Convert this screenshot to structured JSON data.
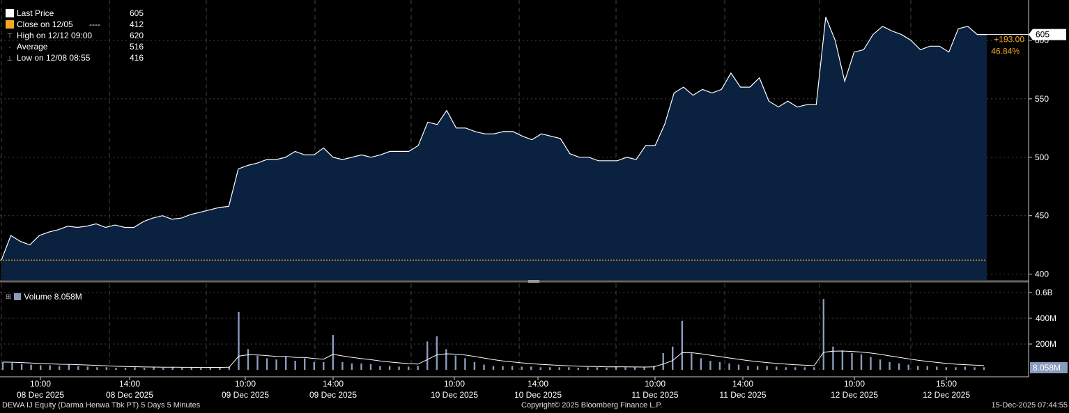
{
  "legend": {
    "last_price_label": "Last Price",
    "last_price_value": "605",
    "close_label": "Close on 12/05",
    "close_dash": "----",
    "close_value": "412",
    "high_label": "High on 12/12 09:00",
    "high_value": "620",
    "average_label": "Average",
    "average_value": "516",
    "low_label": "Low on 12/08 08:55",
    "low_value": "416",
    "volume_label": "Volume",
    "volume_value": "8.058M"
  },
  "colors": {
    "area": "#0a2140",
    "line": "#ffffff",
    "close_line": "#f5a623",
    "volume": "#8a9bbd",
    "change": "#f5a623",
    "grid": "#444444"
  },
  "footer": {
    "left": "DEWA IJ Equity (Darma Henwa Tbk PT) 5 Days 5 Minutes",
    "center": "Copyright© 2025 Bloomberg Finance L.P.",
    "right": "15-Dec-2025 07:44:55"
  },
  "chart_data": [
    {
      "type": "area",
      "series": [
        {
          "name": "Last Price",
          "values": [
            412,
            433,
            428,
            425,
            433,
            436,
            438,
            441,
            440,
            441,
            443,
            440,
            442,
            440,
            440,
            445,
            448,
            450,
            447,
            448,
            451,
            453,
            455,
            457,
            458,
            490,
            493,
            495,
            498,
            498,
            500,
            505,
            502,
            502,
            508,
            500,
            498,
            500,
            502,
            500,
            502,
            505,
            505,
            505,
            510,
            530,
            528,
            540,
            525,
            525,
            522,
            520,
            520,
            522,
            522,
            518,
            515,
            520,
            518,
            516,
            503,
            500,
            500,
            497,
            497,
            497,
            500,
            498,
            510,
            510,
            528,
            555,
            560,
            553,
            558,
            555,
            558,
            572,
            560,
            560,
            568,
            548,
            543,
            548,
            543,
            545,
            545,
            620,
            600,
            565,
            590,
            592,
            605,
            612,
            608,
            605,
            600,
            592,
            595,
            595,
            590,
            610,
            612,
            605,
            605
          ]
        }
      ],
      "ylim": [
        395,
        625
      ],
      "yticks": [
        400,
        450,
        500,
        550,
        600
      ],
      "last_value_label": "605",
      "change_abs": "+193.00",
      "change_pct": "46.84%",
      "close_reference": 412,
      "x_tick_labels": [
        {
          "time": "10:00",
          "date": "08 Dec 2025"
        },
        {
          "time": "14:00",
          "date": "08 Dec 2025"
        },
        {
          "time": "10:00",
          "date": "09 Dec 2025"
        },
        {
          "time": "14:00",
          "date": "09 Dec 2025"
        },
        {
          "time": "10:00",
          "date": "10 Dec 2025"
        },
        {
          "time": "14:00",
          "date": "10 Dec 2025"
        },
        {
          "time": "10:00",
          "date": "11 Dec 2025"
        },
        {
          "time": "14:00",
          "date": "11 Dec 2025"
        },
        {
          "time": "10:00",
          "date": "12 Dec 2025"
        },
        {
          "time": "15:00",
          "date": "12 Dec 2025"
        }
      ]
    },
    {
      "type": "bar",
      "series": [
        {
          "name": "Volume",
          "values": [
            60,
            55,
            45,
            40,
            35,
            35,
            30,
            40,
            30,
            25,
            20,
            20,
            15,
            15,
            20,
            15,
            20,
            15,
            20,
            15,
            20,
            15,
            20,
            20,
            25,
            450,
            160,
            110,
            90,
            80,
            100,
            70,
            90,
            60,
            60,
            270,
            60,
            50,
            50,
            45,
            30,
            30,
            25,
            25,
            30,
            220,
            260,
            160,
            110,
            90,
            60,
            40,
            30,
            30,
            30,
            25,
            25,
            20,
            20,
            20,
            20,
            15,
            20,
            20,
            15,
            25,
            20,
            20,
            20,
            30,
            130,
            180,
            380,
            130,
            90,
            70,
            60,
            50,
            40,
            30,
            30,
            30,
            25,
            20,
            20,
            20,
            20,
            550,
            180,
            150,
            130,
            120,
            100,
            80,
            60,
            50,
            40,
            30,
            30,
            25,
            20,
            20,
            25,
            20,
            20
          ]
        }
      ],
      "ylim": [
        0,
        600
      ],
      "yticks_labels": [
        "200M",
        "400M",
        "0.6B"
      ],
      "last_value_label": "8.058M"
    }
  ]
}
